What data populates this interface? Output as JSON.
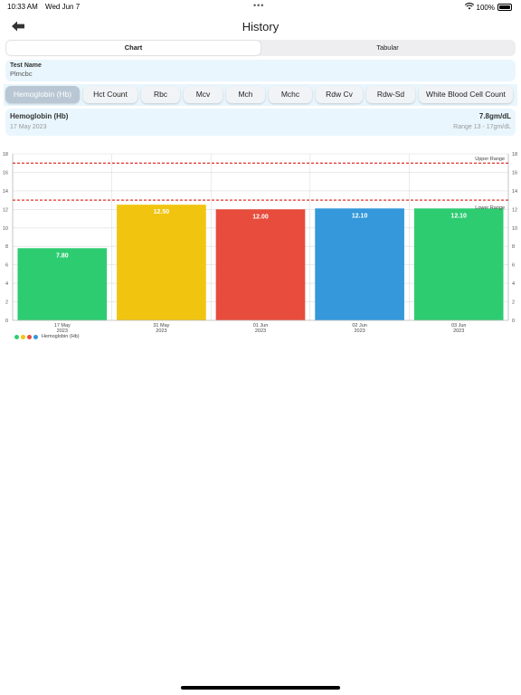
{
  "status_bar": {
    "time": "10:33 AM",
    "date": "Wed Jun 7",
    "battery": "100%"
  },
  "nav": {
    "title": "History"
  },
  "segments": [
    {
      "label": "Chart",
      "active": true
    },
    {
      "label": "Tabular",
      "active": false
    }
  ],
  "test": {
    "name_label": "Test Name",
    "name_value": "Plmcbc"
  },
  "chips": [
    {
      "label": "Hemoglobin (Hb)",
      "active": true
    },
    {
      "label": "Hct Count",
      "active": false
    },
    {
      "label": "Rbc",
      "active": false
    },
    {
      "label": "Mcv",
      "active": false
    },
    {
      "label": "Mch",
      "active": false
    },
    {
      "label": "Mchc",
      "active": false
    },
    {
      "label": "Rdw Cv",
      "active": false
    },
    {
      "label": "Rdw-Sd",
      "active": false
    },
    {
      "label": "White Blood Cell Count",
      "active": false
    }
  ],
  "result": {
    "name": "Hemoglobin (Hb)",
    "value": "7.8gm/dL",
    "date": "17 May 2023",
    "range": "Range 13 - 17gm/dL"
  },
  "chart_data": {
    "type": "bar",
    "categories": [
      [
        "17 May",
        "2023"
      ],
      [
        "31 May",
        "2023"
      ],
      [
        "01 Jun",
        "2023"
      ],
      [
        "02 Jun",
        "2023"
      ],
      [
        "03 Jun",
        "2023"
      ]
    ],
    "values": [
      7.8,
      12.5,
      12.0,
      12.1,
      12.1
    ],
    "value_labels": [
      "7.80",
      "12.50",
      "12.00",
      "12.10",
      "12.10"
    ],
    "bar_colors": [
      "#2ecc71",
      "#f1c40f",
      "#e74c3c",
      "#3498db",
      "#2ecc71"
    ],
    "ylim": [
      0,
      18
    ],
    "yticks": [
      0,
      2,
      4,
      6,
      8,
      10,
      12,
      14,
      16,
      18
    ],
    "upper_range": {
      "value": 17,
      "label": "Upper Range"
    },
    "lower_range": {
      "value": 13,
      "label": "Lower Range"
    },
    "range_line_color": "#e0302a",
    "legend": {
      "label": "Hemoglobin (Hb)",
      "colors": [
        "#2ecc71",
        "#f1c40f",
        "#e74c3c",
        "#3498db"
      ]
    },
    "grid": true
  }
}
